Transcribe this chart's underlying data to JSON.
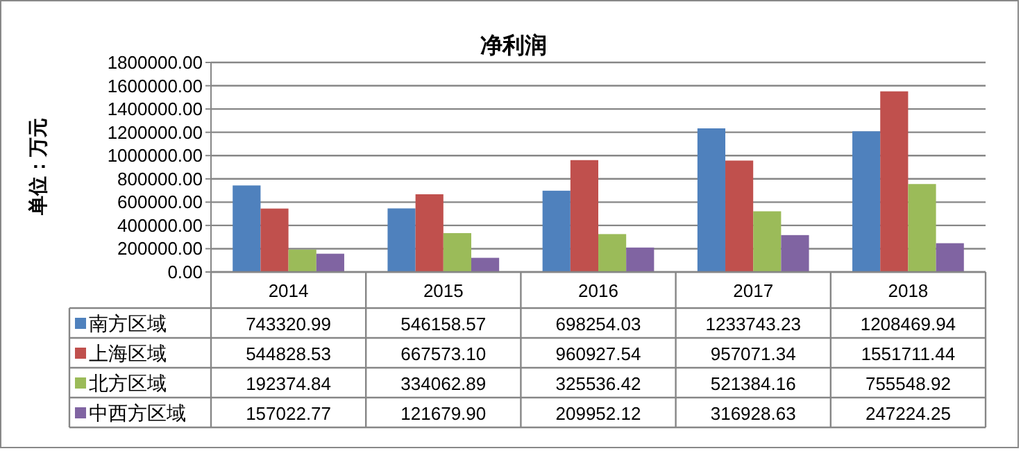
{
  "chart_data": {
    "type": "bar",
    "title": "净利润",
    "ylabel": "单位：万元",
    "categories": [
      "2014",
      "2015",
      "2016",
      "2017",
      "2018"
    ],
    "ylim": [
      0,
      1800000
    ],
    "yticks": [
      {
        "value": 0,
        "label": "0.00"
      },
      {
        "value": 200000,
        "label": "200000.00"
      },
      {
        "value": 400000,
        "label": "400000.00"
      },
      {
        "value": 600000,
        "label": "600000.00"
      },
      {
        "value": 800000,
        "label": "800000.00"
      },
      {
        "value": 1000000,
        "label": "1000000.00"
      },
      {
        "value": 1200000,
        "label": "1200000.00"
      },
      {
        "value": 1400000,
        "label": "1400000.00"
      },
      {
        "value": 1600000,
        "label": "1600000.00"
      },
      {
        "value": 1800000,
        "label": "1800000.00"
      }
    ],
    "grid": "y",
    "legend": "bottom",
    "series": [
      {
        "name": "南方区域",
        "color": "#4f81bd",
        "values": [
          743320.99,
          546158.57,
          698254.03,
          1233743.23,
          1208469.94
        ],
        "value_labels": [
          "743320.99",
          "546158.57",
          "698254.03",
          "1233743.23",
          "1208469.94"
        ]
      },
      {
        "name": "上海区域",
        "color": "#c0504d",
        "values": [
          544828.53,
          667573.1,
          960927.54,
          957071.34,
          1551711.44
        ],
        "value_labels": [
          "544828.53",
          "667573.10",
          "960927.54",
          "957071.34",
          "1551711.44"
        ]
      },
      {
        "name": "北方区域",
        "color": "#9bbb59",
        "values": [
          192374.84,
          334062.89,
          325536.42,
          521384.16,
          755548.92
        ],
        "value_labels": [
          "192374.84",
          "334062.89",
          "325536.42",
          "521384.16",
          "755548.92"
        ]
      },
      {
        "name": "中西方区域",
        "color": "#8064a2",
        "values": [
          157022.77,
          121679.9,
          209952.12,
          316928.63,
          247224.25
        ],
        "value_labels": [
          "157022.77",
          "121679.90",
          "209952.12",
          "316928.63",
          "247224.25"
        ]
      }
    ]
  }
}
